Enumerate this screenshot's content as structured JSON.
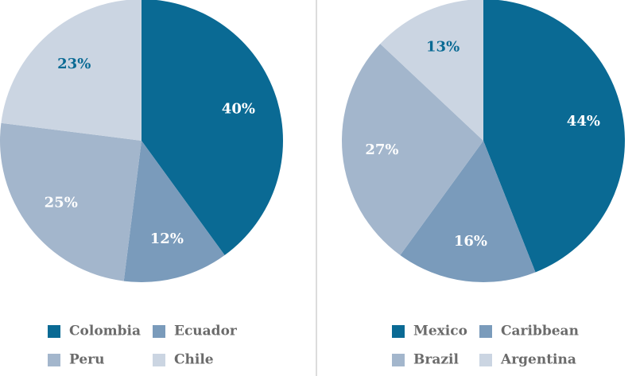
{
  "chart_data": [
    {
      "type": "pie",
      "categories": [
        "Colombia",
        "Ecuador",
        "Peru",
        "Chile"
      ],
      "values": [
        40,
        12,
        25,
        23
      ],
      "labels": [
        "40%",
        "12%",
        "25%",
        "23%"
      ],
      "colors": [
        "#0a6a94",
        "#7a9bbb",
        "#a3b6cc",
        "#cbd5e2"
      ],
      "label_colors": [
        "#ffffff",
        "#ffffff",
        "#ffffff",
        "#0a6a94"
      ],
      "legend": [
        "Colombia",
        "Ecuador",
        "Peru",
        "Chile"
      ]
    },
    {
      "type": "pie",
      "categories": [
        "Mexico",
        "Caribbean",
        "Brazil",
        "Argentina"
      ],
      "values": [
        44,
        16,
        27,
        13
      ],
      "labels": [
        "44%",
        "16%",
        "27%",
        "13%"
      ],
      "colors": [
        "#0a6a94",
        "#7a9bbb",
        "#a3b6cc",
        "#cbd5e2"
      ],
      "label_colors": [
        "#ffffff",
        "#ffffff",
        "#ffffff",
        "#0a6a94"
      ],
      "legend": [
        "Mexico",
        "Caribbean",
        "Brazil",
        "Argentina"
      ]
    }
  ]
}
